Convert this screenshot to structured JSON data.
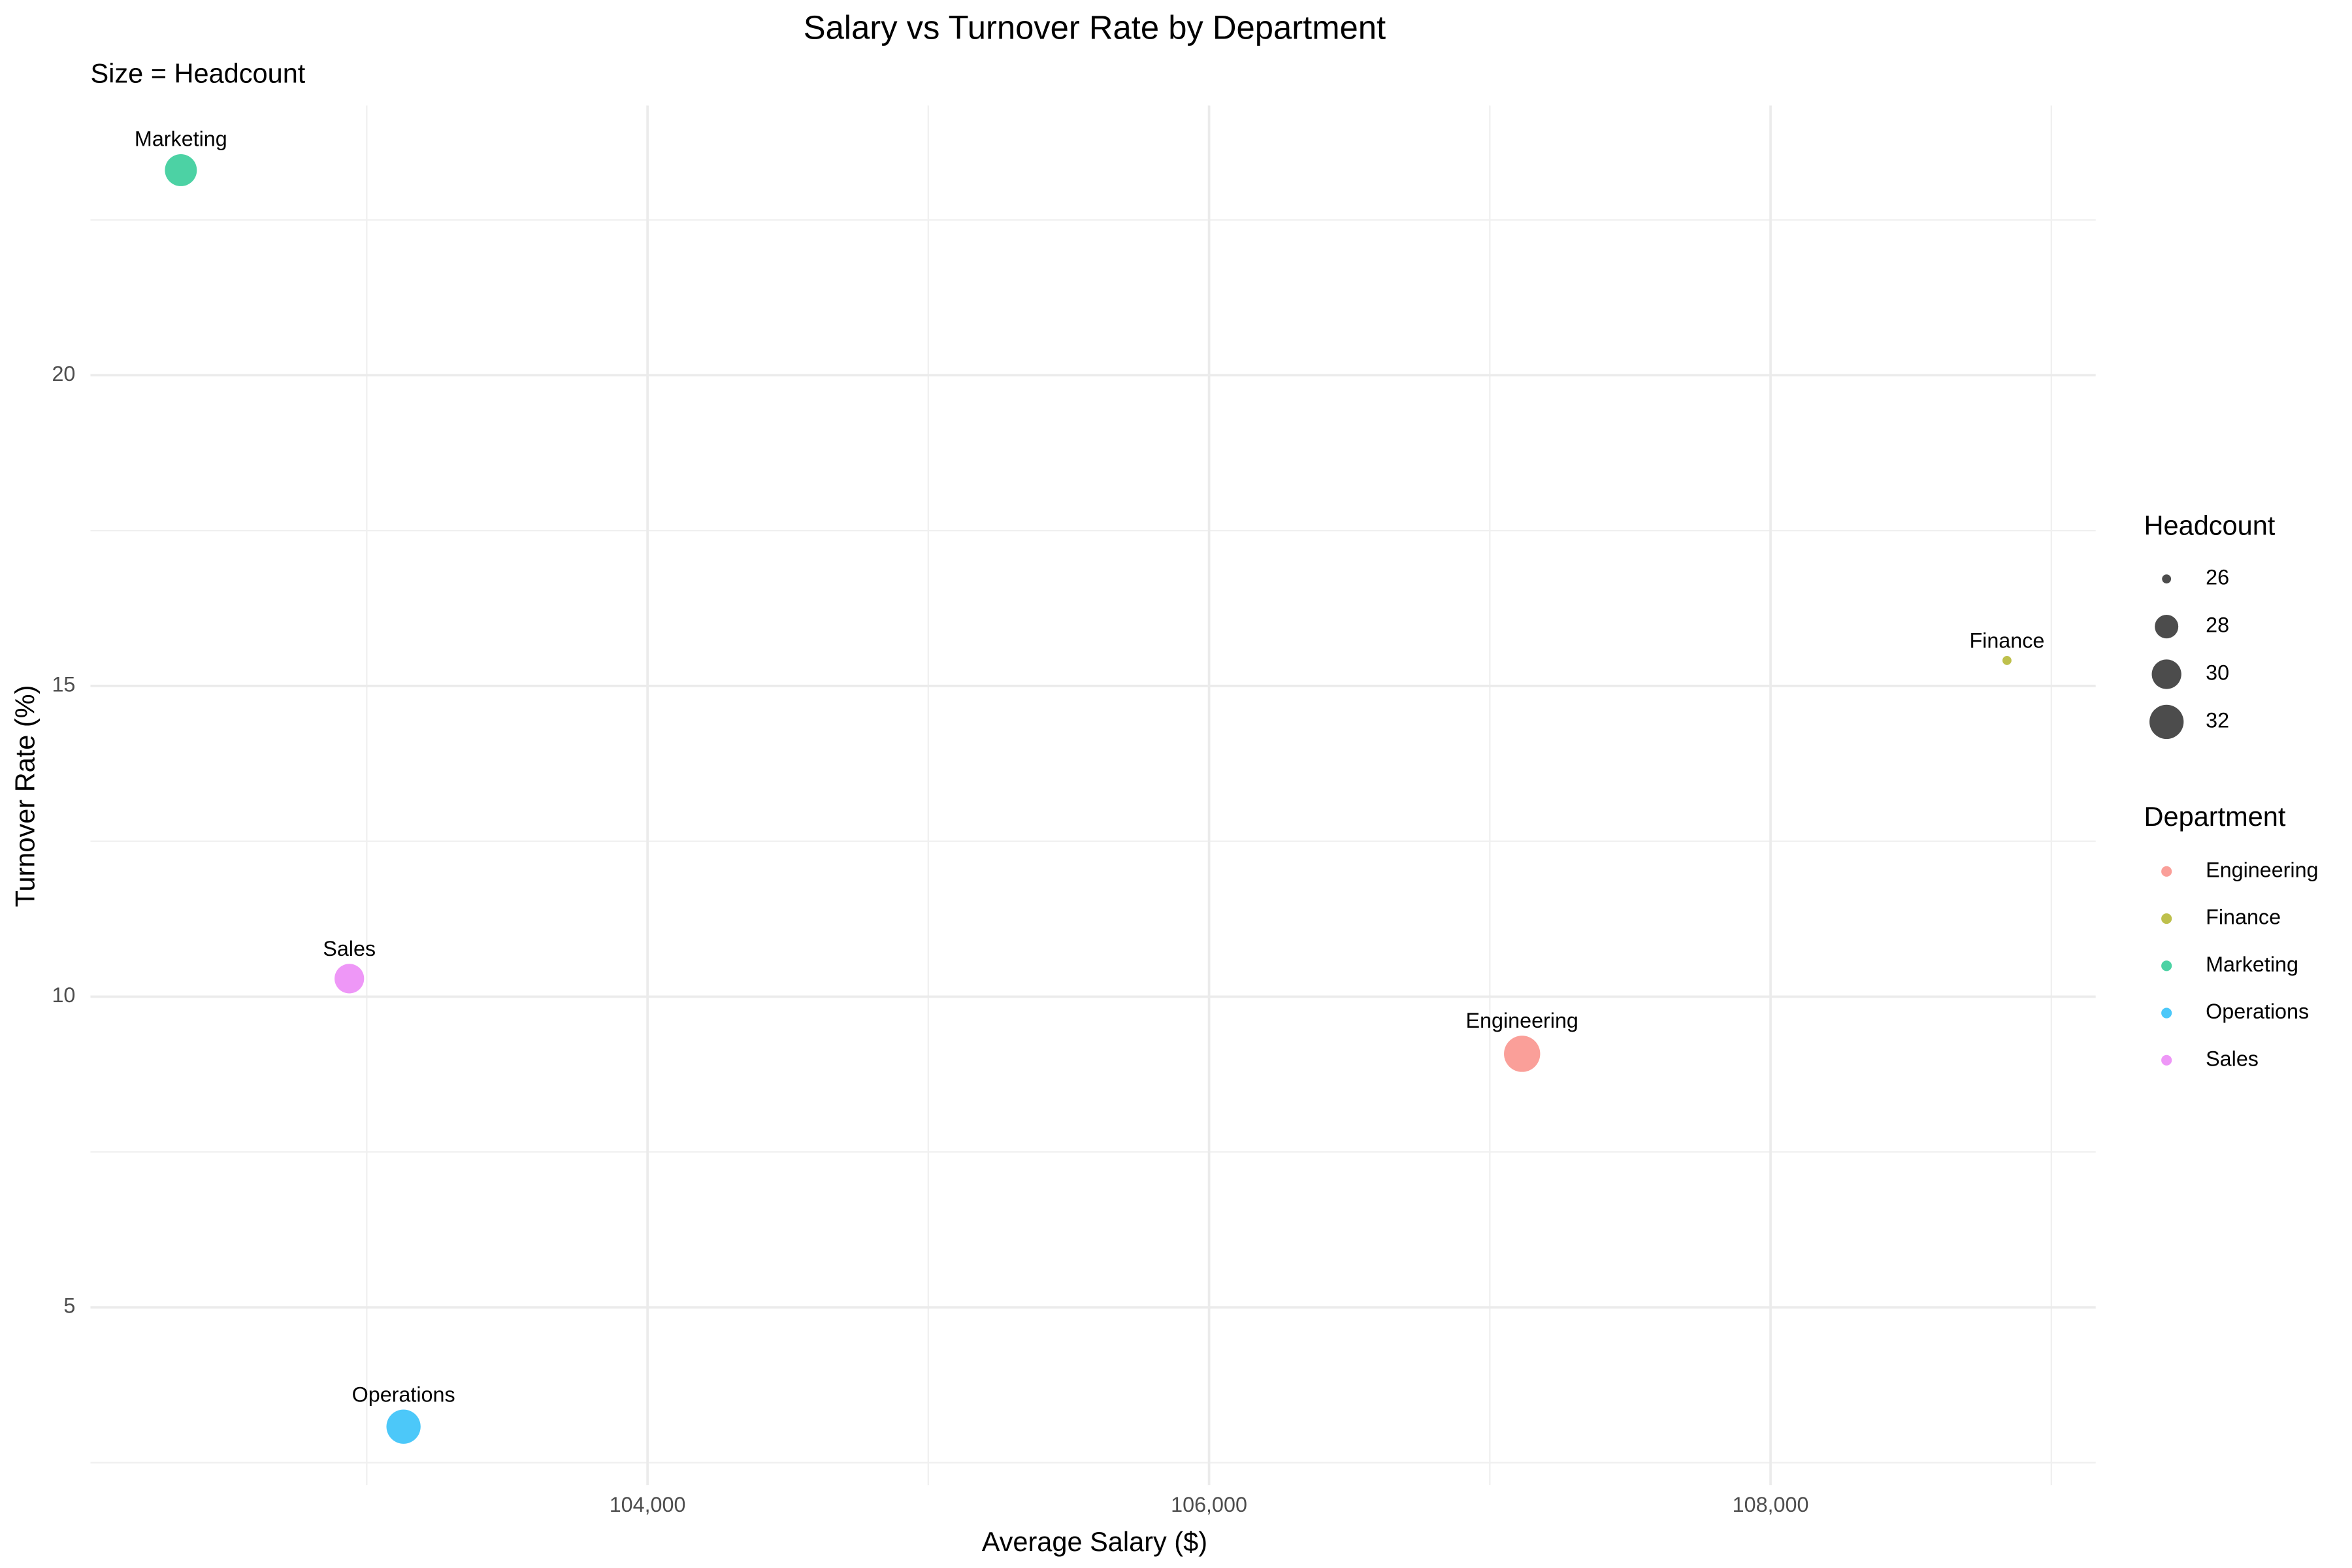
{
  "chart_data": {
    "type": "scatter",
    "title": "Salary vs Turnover Rate by Department",
    "subtitle": "Size = Headcount",
    "x_label": "Average Salary ($)",
    "y_label": "Turnover Rate (%)",
    "xlim": [
      102016,
      109158
    ],
    "ylim": [
      2.14,
      24.34
    ],
    "xticks": [
      {
        "value": 104000,
        "label": "104,000"
      },
      {
        "value": 106000,
        "label": "106,000"
      },
      {
        "value": 108000,
        "label": "108,000"
      }
    ],
    "yticks": [
      5,
      10,
      15,
      20
    ],
    "grid": true,
    "legend_title": "Department",
    "size_legend": {
      "title": "Headcount",
      "breaks": [
        26,
        28,
        30,
        32
      ]
    },
    "series": [
      {
        "name": "Engineering",
        "color": "#F8766D",
        "x": [
          107115
        ],
        "values": [
          9.08
        ],
        "sizes": [
          33
        ]
      },
      {
        "name": "Finance",
        "color": "#A3A500",
        "x": [
          108842
        ],
        "values": [
          15.41
        ],
        "sizes": [
          26
        ]
      },
      {
        "name": "Marketing",
        "color": "#00BF7D",
        "x": [
          102338
        ],
        "values": [
          23.3
        ],
        "sizes": [
          31
        ]
      },
      {
        "name": "Operations",
        "color": "#00B0F6",
        "x": [
          103131
        ],
        "values": [
          3.08
        ],
        "sizes": [
          32
        ]
      },
      {
        "name": "Sales",
        "color": "#E76BF3",
        "x": [
          102938
        ],
        "values": [
          10.29
        ],
        "sizes": [
          30
        ]
      }
    ]
  }
}
